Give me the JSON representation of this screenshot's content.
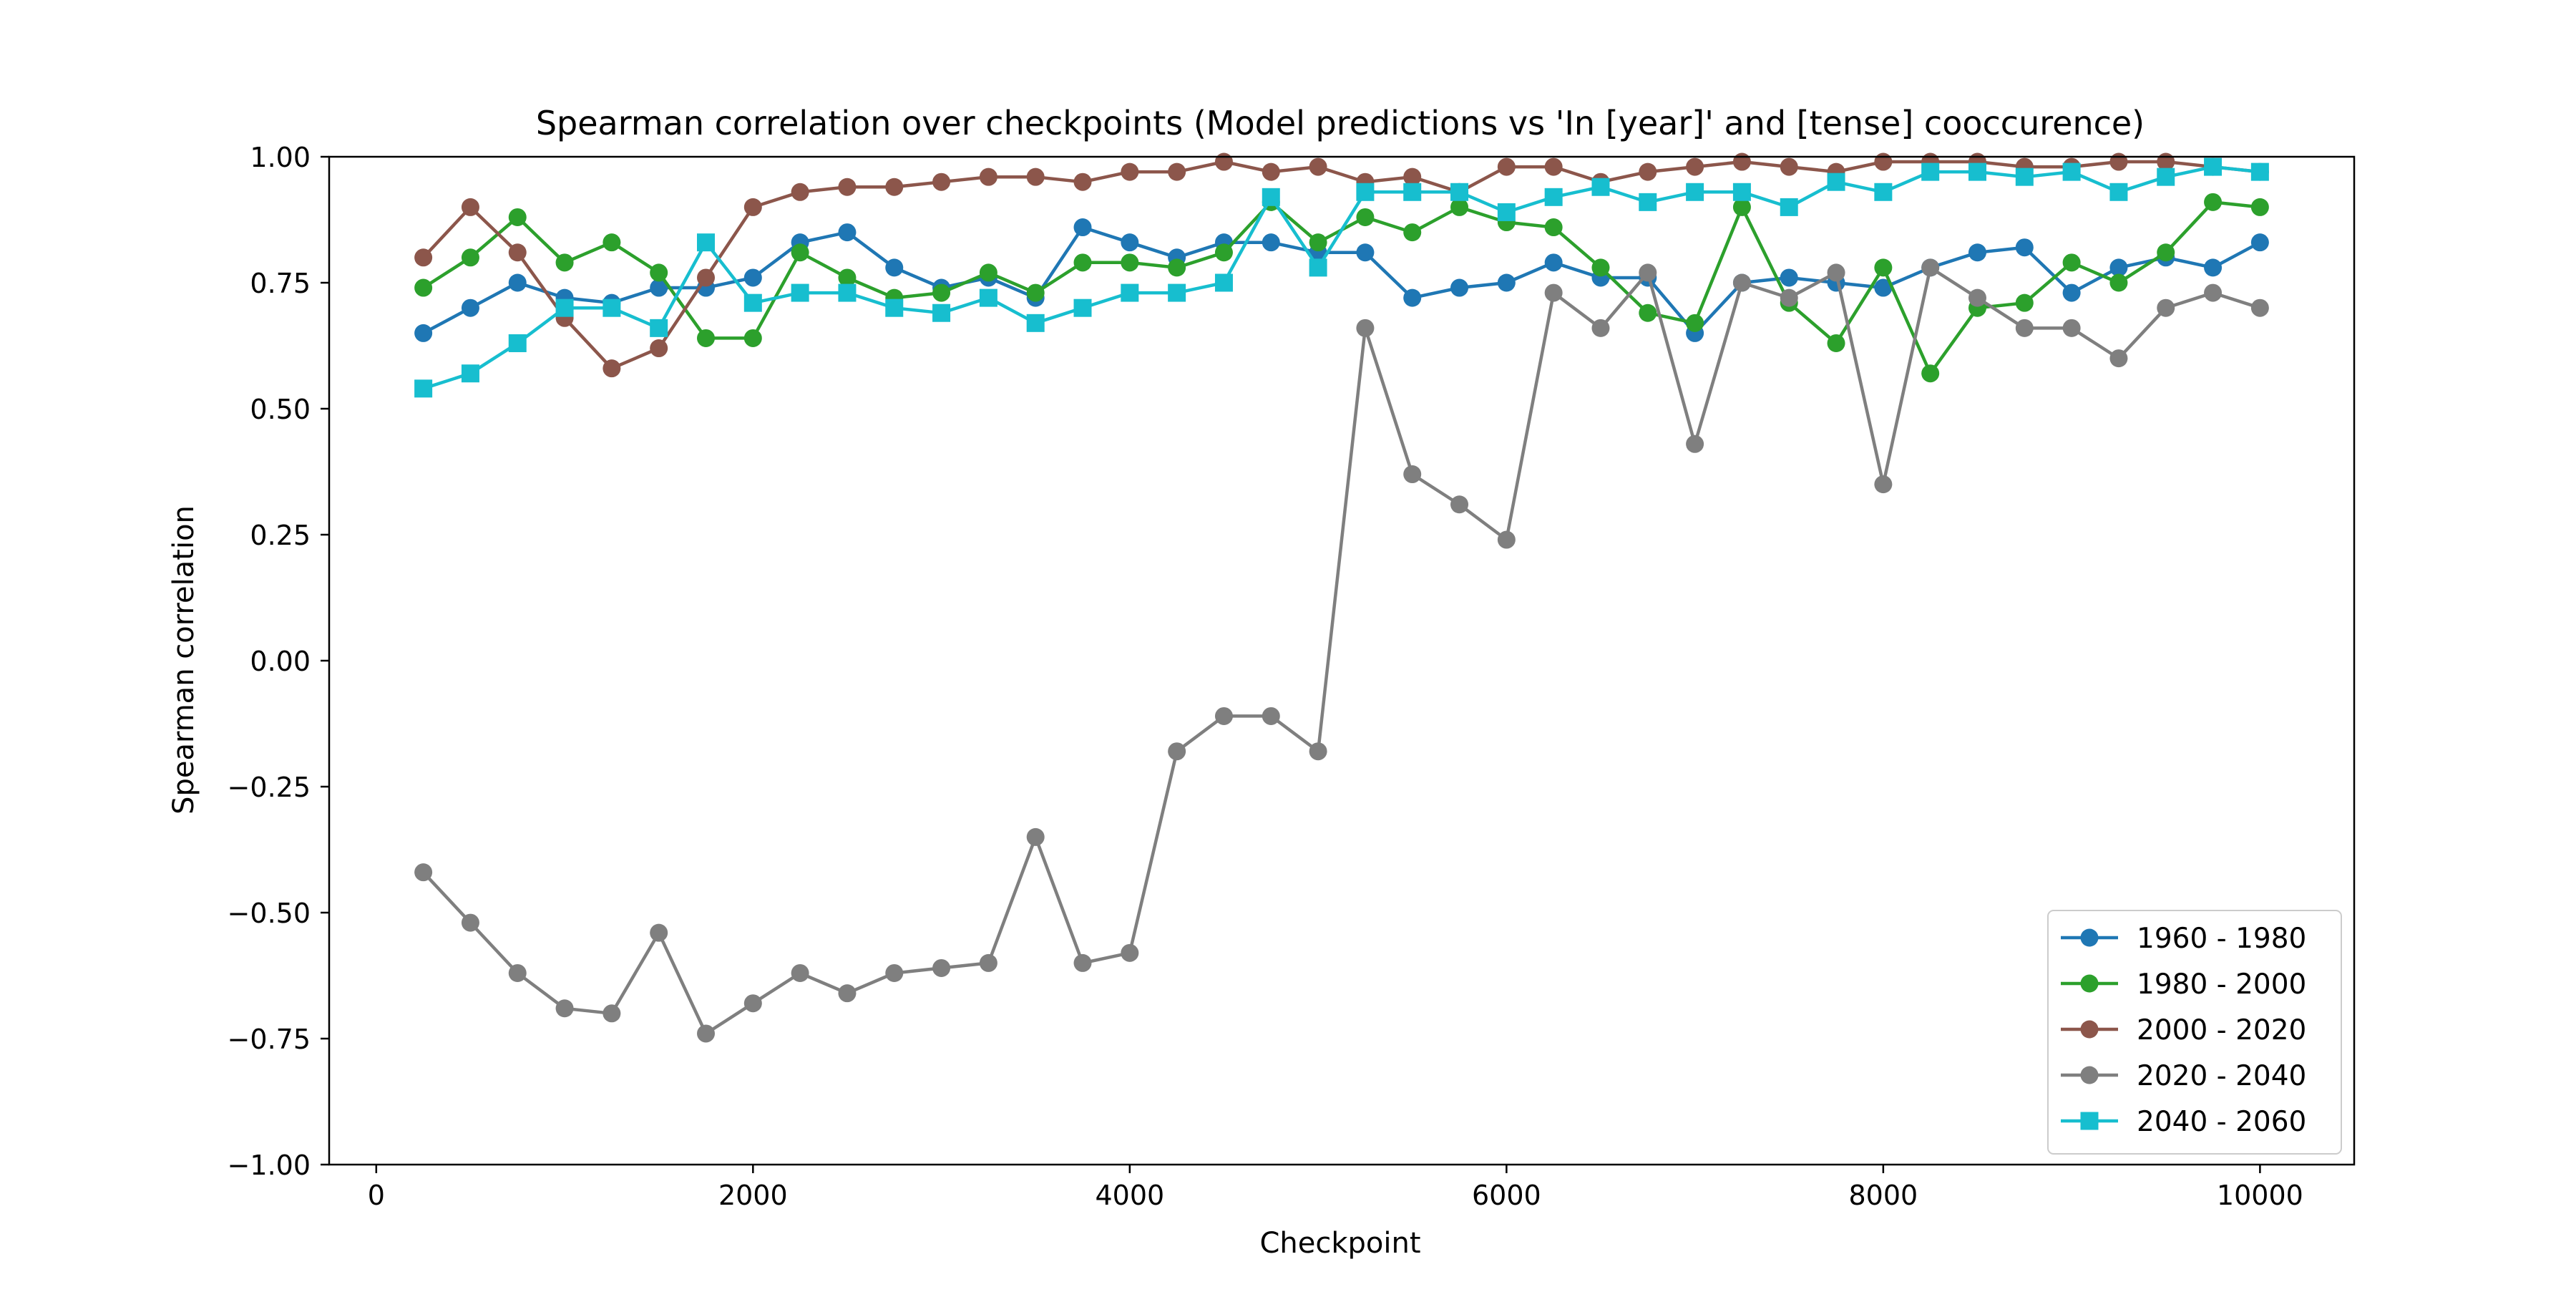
{
  "chart_data": {
    "type": "line",
    "title": "Spearman correlation over checkpoints (Model predictions vs 'In [year]' and [tense] cooccurence)",
    "xlabel": "Checkpoint",
    "ylabel": "Spearman correlation",
    "xlim": [
      -250,
      10500
    ],
    "ylim": [
      -1.0,
      1.0
    ],
    "xticks": [
      0,
      2000,
      4000,
      6000,
      8000,
      10000
    ],
    "xtick_labels": [
      "0",
      "2000",
      "4000",
      "6000",
      "8000",
      "10000"
    ],
    "yticks": [
      -1.0,
      -0.75,
      -0.5,
      -0.25,
      0.0,
      0.25,
      0.5,
      0.75,
      1.0
    ],
    "ytick_labels": [
      "−1.00",
      "−0.75",
      "−0.50",
      "−0.25",
      "0.00",
      "0.25",
      "0.50",
      "0.75",
      "1.00"
    ],
    "grid": false,
    "legend_position": "lower-right",
    "x": [
      250,
      500,
      750,
      1000,
      1250,
      1500,
      1750,
      2000,
      2250,
      2500,
      2750,
      3000,
      3250,
      3500,
      3750,
      4000,
      4250,
      4500,
      4750,
      5000,
      5250,
      5500,
      5750,
      6000,
      6250,
      6500,
      6750,
      7000,
      7250,
      7500,
      7750,
      8000,
      8250,
      8500,
      8750,
      9000,
      9250,
      9500,
      9750,
      10000
    ],
    "series": [
      {
        "name": "1960 - 1980",
        "color": "#1f77b4",
        "marker": "circle",
        "values": [
          0.65,
          0.7,
          0.75,
          0.72,
          0.71,
          0.74,
          0.74,
          0.76,
          0.83,
          0.85,
          0.78,
          0.74,
          0.76,
          0.72,
          0.86,
          0.83,
          0.8,
          0.83,
          0.83,
          0.81,
          0.81,
          0.72,
          0.74,
          0.75,
          0.79,
          0.76,
          0.76,
          0.65,
          0.75,
          0.76,
          0.75,
          0.74,
          0.78,
          0.81,
          0.82,
          0.73,
          0.78,
          0.8,
          0.78,
          0.83
        ]
      },
      {
        "name": "1980 - 2000",
        "color": "#2ca02c",
        "marker": "circle",
        "values": [
          0.74,
          0.8,
          0.88,
          0.79,
          0.83,
          0.77,
          0.64,
          0.64,
          0.81,
          0.76,
          0.72,
          0.73,
          0.77,
          0.73,
          0.79,
          0.79,
          0.78,
          0.81,
          0.91,
          0.83,
          0.88,
          0.85,
          0.9,
          0.87,
          0.86,
          0.78,
          0.69,
          0.67,
          0.9,
          0.71,
          0.63,
          0.78,
          0.57,
          0.7,
          0.71,
          0.79,
          0.75,
          0.81,
          0.91,
          0.9
        ]
      },
      {
        "name": "2000 - 2020",
        "color": "#8c564b",
        "marker": "circle",
        "values": [
          0.8,
          0.9,
          0.81,
          0.68,
          0.58,
          0.62,
          0.76,
          0.9,
          0.93,
          0.94,
          0.94,
          0.95,
          0.96,
          0.96,
          0.95,
          0.97,
          0.97,
          0.99,
          0.97,
          0.98,
          0.95,
          0.96,
          0.93,
          0.98,
          0.98,
          0.95,
          0.97,
          0.98,
          0.99,
          0.98,
          0.97,
          0.99,
          0.99,
          0.99,
          0.98,
          0.98,
          0.99,
          0.99,
          0.98,
          0.97
        ]
      },
      {
        "name": "2020 - 2040",
        "color": "#7f7f7f",
        "marker": "circle",
        "values": [
          -0.42,
          -0.52,
          -0.62,
          -0.69,
          -0.7,
          -0.54,
          -0.74,
          -0.68,
          -0.62,
          -0.66,
          -0.62,
          -0.61,
          -0.6,
          -0.35,
          -0.6,
          -0.58,
          -0.18,
          -0.11,
          -0.11,
          -0.18,
          0.66,
          0.37,
          0.31,
          0.24,
          0.73,
          0.66,
          0.77,
          0.43,
          0.75,
          0.72,
          0.77,
          0.35,
          0.78,
          0.72,
          0.66,
          0.66,
          0.6,
          0.7,
          0.73,
          0.7
        ]
      },
      {
        "name": "2040 - 2060",
        "color": "#17becf",
        "marker": "square",
        "values": [
          0.54,
          0.57,
          0.63,
          0.7,
          0.7,
          0.66,
          0.83,
          0.71,
          0.73,
          0.73,
          0.7,
          0.69,
          0.72,
          0.67,
          0.7,
          0.73,
          0.73,
          0.75,
          0.92,
          0.78,
          0.93,
          0.93,
          0.93,
          0.89,
          0.92,
          0.94,
          0.91,
          0.93,
          0.93,
          0.9,
          0.95,
          0.93,
          0.97,
          0.97,
          0.96,
          0.97,
          0.93,
          0.96,
          0.98,
          0.97
        ]
      }
    ]
  }
}
